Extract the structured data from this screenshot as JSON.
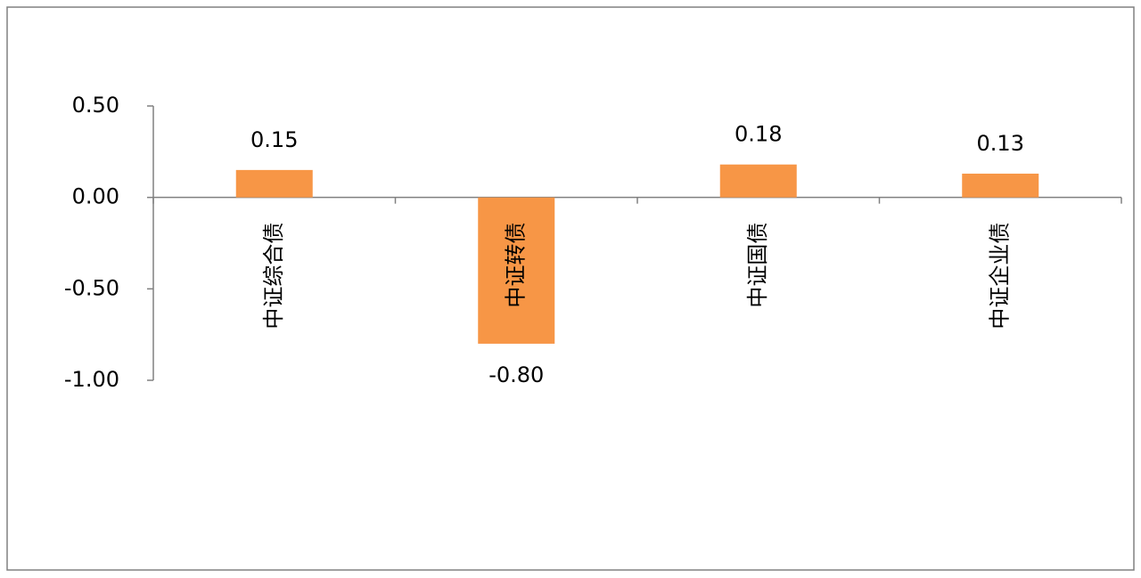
{
  "chart_data": {
    "type": "bar",
    "categories": [
      "中证综合债",
      "中证转债",
      "中证国债",
      "中证企业债"
    ],
    "values": [
      0.15,
      -0.8,
      0.18,
      0.13
    ],
    "value_labels": [
      "0.15",
      "-0.80",
      "0.18",
      "0.13"
    ],
    "color": "#f79646",
    "ylim": [
      -1,
      0.5
    ],
    "yticks": [
      {
        "value": 0.5,
        "label": "0.50"
      },
      {
        "value": 0,
        "label": "0.00"
      },
      {
        "value": -0.5,
        "label": "-0.50"
      },
      {
        "value": -1,
        "label": "-1.00"
      }
    ],
    "grid": false
  }
}
